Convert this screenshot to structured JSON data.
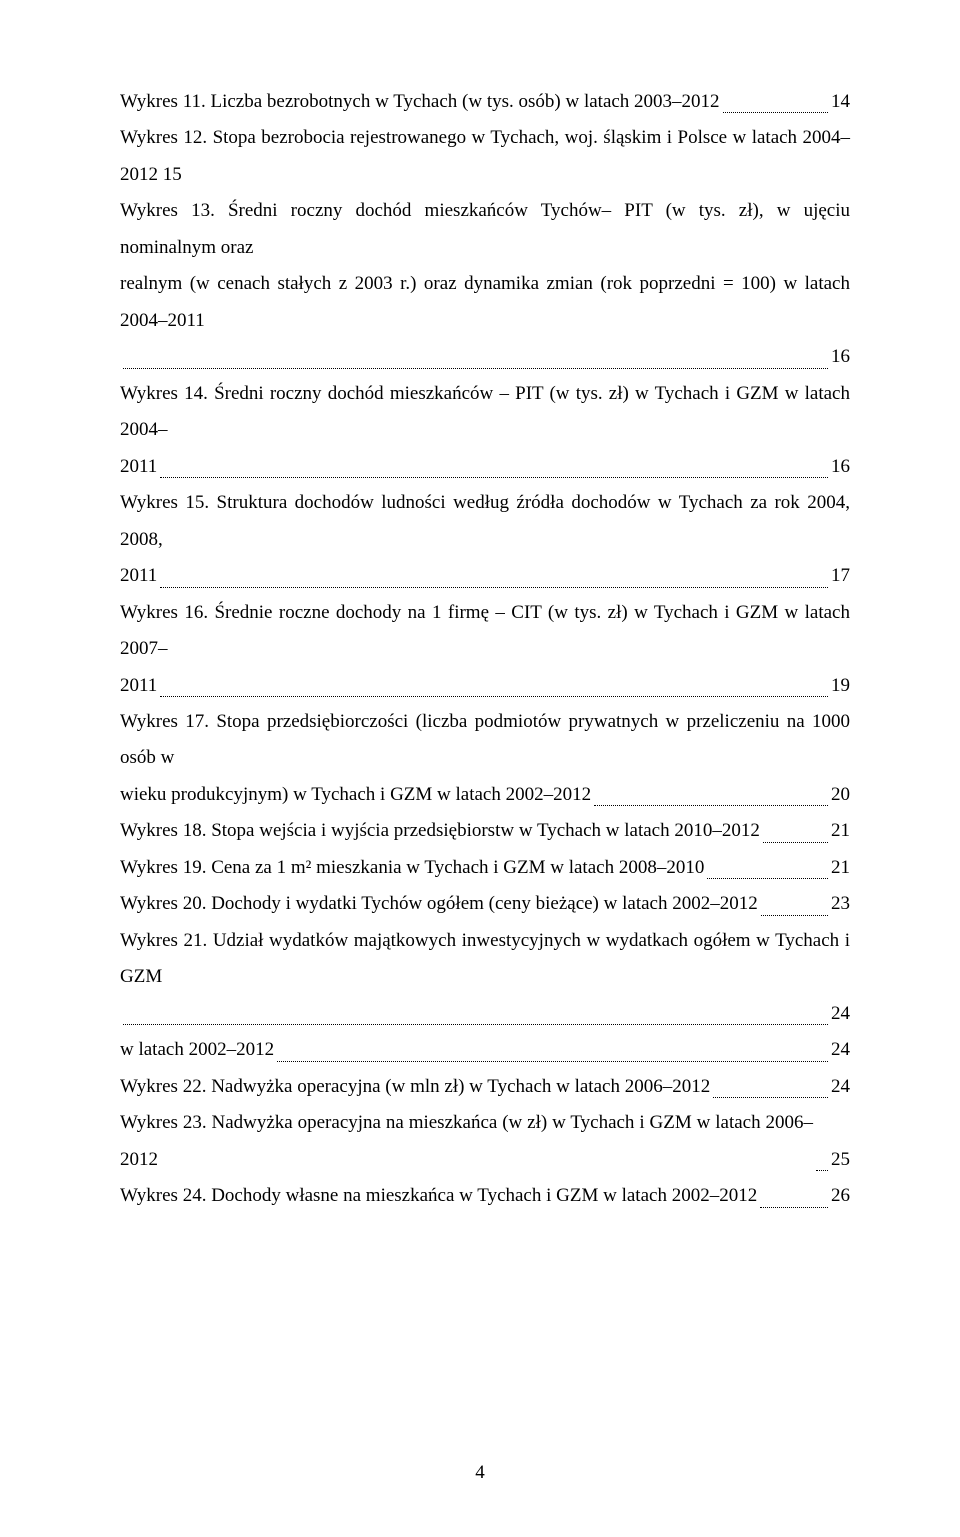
{
  "entries": [
    {
      "lines": [
        {
          "text": "Wykres 11. Liczba bezrobotnych w Tychach (w tys. osób) w latach 2003–2012",
          "page": "14"
        }
      ]
    },
    {
      "lines": [
        {
          "text": "Wykres 12. Stopa bezrobocia rejestrowanego w Tychach, woj. śląskim i Polsce w latach 2004–2012 15",
          "page": ""
        }
      ]
    },
    {
      "lines": [
        {
          "text": "Wykres 13. Średni roczny dochód mieszkańców Tychów– PIT (w tys. zł), w ujęciu nominalnym oraz"
        },
        {
          "text": "realnym (w cenach stałych z 2003 r.) oraz dynamika zmian (rok poprzedni = 100) w latach 2004–2011"
        },
        {
          "text": "",
          "page": "16"
        }
      ]
    },
    {
      "lines": [
        {
          "text": "Wykres 14. Średni roczny dochód mieszkańców – PIT (w tys. zł) w Tychach i GZM w latach 2004–"
        },
        {
          "text": "2011",
          "page": "16"
        }
      ]
    },
    {
      "lines": [
        {
          "text": "Wykres 15. Struktura dochodów ludności według źródła dochodów w Tychach za rok 2004, 2008,"
        },
        {
          "text": "2011",
          "page": "17"
        }
      ]
    },
    {
      "lines": [
        {
          "text": "Wykres 16. Średnie roczne dochody na 1 firmę – CIT (w tys. zł) w Tychach i GZM w latach 2007–"
        },
        {
          "text": "2011",
          "page": "19"
        }
      ]
    },
    {
      "lines": [
        {
          "text": "Wykres 17. Stopa przedsiębiorczości (liczba podmiotów prywatnych w przeliczeniu na 1000 osób w"
        },
        {
          "text": "wieku produkcyjnym) w Tychach i GZM w latach 2002–2012",
          "page": "20"
        }
      ]
    },
    {
      "lines": [
        {
          "text": "Wykres 18. Stopa wejścia i wyjścia przedsiębiorstw w Tychach w latach 2010–2012",
          "page": "21"
        }
      ]
    },
    {
      "lines": [
        {
          "text": "Wykres 19. Cena za 1 m² mieszkania w Tychach i GZM w latach 2008–2010",
          "page": "21"
        }
      ]
    },
    {
      "lines": [
        {
          "text": "Wykres 20. Dochody i wydatki Tychów ogółem (ceny bieżące) w latach 2002–2012",
          "page": "23"
        }
      ]
    },
    {
      "lines": [
        {
          "text": "Wykres 21. Udział wydatków majątkowych inwestycyjnych w wydatkach ogółem w Tychach i GZM"
        },
        {
          "text": "",
          "page": "24"
        }
      ]
    },
    {
      "lines": [
        {
          "text": "w latach 2002–2012",
          "page": "24"
        }
      ]
    },
    {
      "lines": [
        {
          "text": "Wykres 22. Nadwyżka operacyjna (w mln zł) w Tychach w latach 2006–2012",
          "page": "24"
        }
      ]
    },
    {
      "lines": [
        {
          "text": "Wykres 23. Nadwyżka operacyjna na mieszkańca (w zł) w Tychach i GZM w latach 2006–2012",
          "page": "25"
        }
      ]
    },
    {
      "lines": [
        {
          "text": "Wykres 24. Dochody własne na mieszkańca w Tychach i GZM w latach 2002–2012",
          "page": "26"
        }
      ]
    }
  ],
  "pageNumber": "4"
}
